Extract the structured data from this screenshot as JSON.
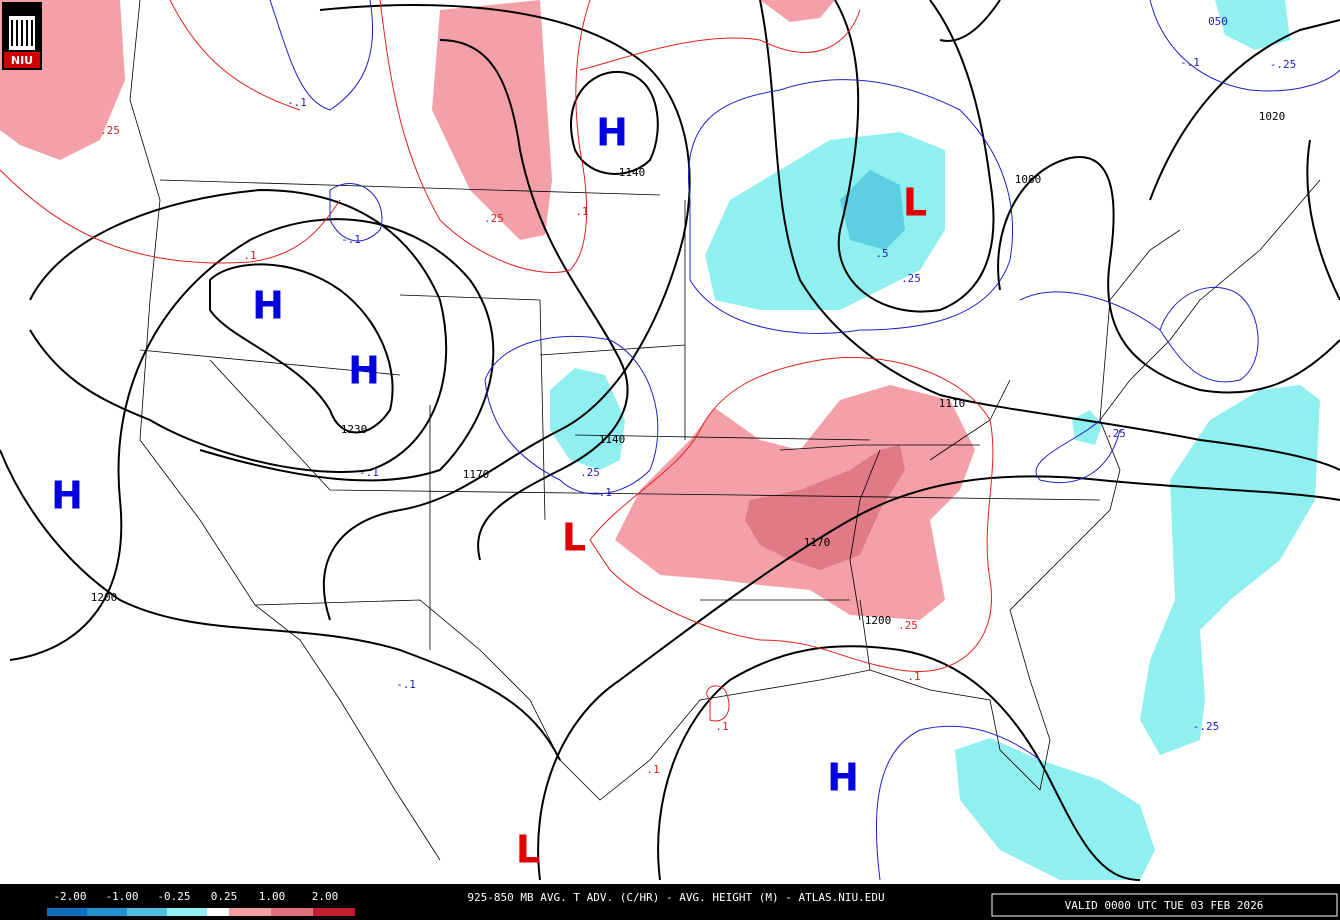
{
  "logo": "NIU",
  "pressure_centers": [
    "H",
    "L",
    "H",
    "H",
    "H",
    "L",
    "H",
    "L"
  ],
  "height_labels": [
    "1140",
    "1080",
    "1020",
    "1230",
    "1170",
    "1140",
    "1200",
    "1110",
    "1170",
    "1200",
    "050"
  ],
  "warm_advection_labels": [
    ".25",
    ".25",
    ".1",
    ".1",
    ".25",
    ".1",
    ".1",
    ".1"
  ],
  "cold_advection_labels": [
    "-.1",
    "-.1",
    "-.1",
    ".25",
    "-.1",
    ".5",
    ".25",
    ".25",
    "-.1",
    "-.25",
    "-.1",
    "-.25"
  ],
  "legend": [
    "-2.00",
    "-1.00",
    "-0.25",
    "0.25",
    "1.00",
    "2.00"
  ],
  "title": "925-850 MB AVG. T ADV. (C/HR) - AVG. HEIGHT (M) - ATLAS.NIU.EDU",
  "valid": "VALID 0000 UTC TUE 03 FEB 2026"
}
